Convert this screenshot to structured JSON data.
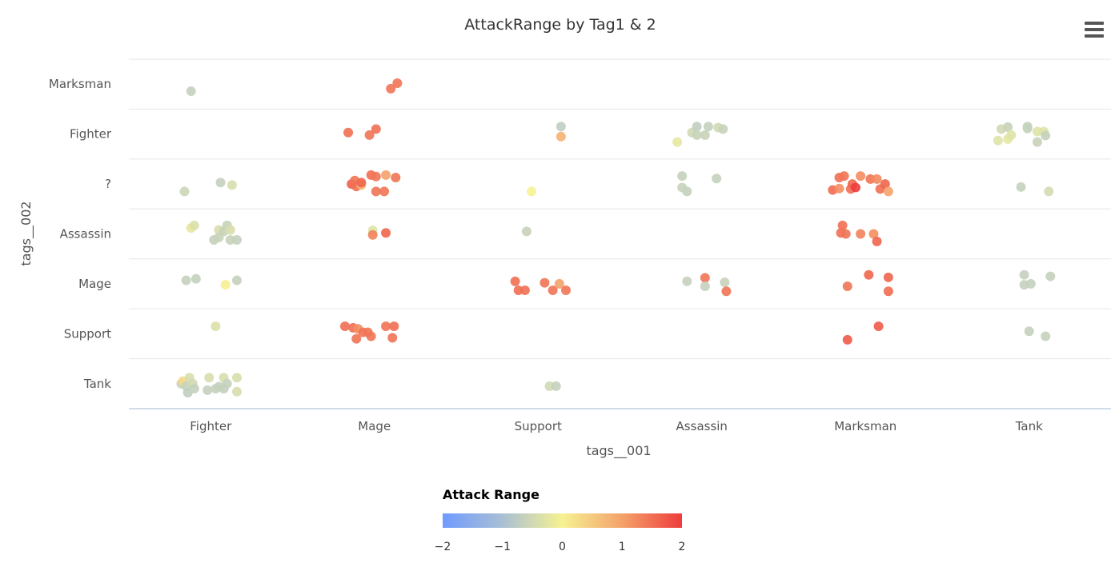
{
  "chart_data": {
    "type": "scatter",
    "title": "AttackRange by Tag1 & 2",
    "xlabel": "tags__001",
    "ylabel": "tags__002",
    "x_categories": [
      "Fighter",
      "Mage",
      "Support",
      "Assassin",
      "Marksman",
      "Tank"
    ],
    "y_categories": [
      "Marksman",
      "Fighter",
      "?",
      "Assassin",
      "Mage",
      "Support",
      "Tank"
    ],
    "color_axis": {
      "title": "Attack Range",
      "min": -2,
      "max": 2,
      "ticks": [
        "−2",
        "−1",
        "0",
        "1",
        "2"
      ],
      "stops": [
        "#6f9bff",
        "#a9bfd3",
        "#f6f293",
        "#f4a26a",
        "#ee3c3c"
      ]
    },
    "points": [
      {
        "x": "Fighter",
        "y": "Marksman",
        "dx": -0.12,
        "dy": -0.14,
        "v": -0.65
      },
      {
        "x": "Mage",
        "y": "Marksman",
        "dx": 0.1,
        "dy": -0.09,
        "v": 1.45
      },
      {
        "x": "Mage",
        "y": "Marksman",
        "dx": 0.14,
        "dy": 0.02,
        "v": 1.45
      },
      {
        "x": "Mage",
        "y": "Fighter",
        "dx": -0.16,
        "dy": 0.03,
        "v": 1.5
      },
      {
        "x": "Mage",
        "y": "Fighter",
        "dx": -0.03,
        "dy": -0.02,
        "v": 1.45
      },
      {
        "x": "Mage",
        "y": "Fighter",
        "dx": 0.01,
        "dy": 0.1,
        "v": 1.5
      },
      {
        "x": "Support",
        "y": "Fighter",
        "dx": 0.14,
        "dy": 0.15,
        "v": -0.7
      },
      {
        "x": "Support",
        "y": "Fighter",
        "dx": 0.14,
        "dy": -0.05,
        "v": 0.8
      },
      {
        "x": "Assassin",
        "y": "Fighter",
        "dx": -0.15,
        "dy": -0.16,
        "v": -0.2
      },
      {
        "x": "Assassin",
        "y": "Fighter",
        "dx": -0.06,
        "dy": 0.03,
        "v": -0.5
      },
      {
        "x": "Assassin",
        "y": "Fighter",
        "dx": -0.03,
        "dy": 0.15,
        "v": -0.7
      },
      {
        "x": "Assassin",
        "y": "Fighter",
        "dx": -0.03,
        "dy": -0.02,
        "v": -0.6
      },
      {
        "x": "Assassin",
        "y": "Fighter",
        "dx": 0.02,
        "dy": -0.02,
        "v": -0.6
      },
      {
        "x": "Assassin",
        "y": "Fighter",
        "dx": 0.04,
        "dy": 0.15,
        "v": -0.65
      },
      {
        "x": "Assassin",
        "y": "Fighter",
        "dx": 0.1,
        "dy": 0.13,
        "v": -0.5
      },
      {
        "x": "Assassin",
        "y": "Fighter",
        "dx": 0.13,
        "dy": 0.1,
        "v": -0.6
      },
      {
        "x": "Tank",
        "y": "Fighter",
        "dx": -0.19,
        "dy": -0.13,
        "v": -0.3
      },
      {
        "x": "Tank",
        "y": "Fighter",
        "dx": -0.17,
        "dy": 0.1,
        "v": -0.5
      },
      {
        "x": "Tank",
        "y": "Fighter",
        "dx": -0.13,
        "dy": 0.14,
        "v": -0.6
      },
      {
        "x": "Tank",
        "y": "Fighter",
        "dx": -0.13,
        "dy": -0.1,
        "v": -0.25
      },
      {
        "x": "Tank",
        "y": "Fighter",
        "dx": -0.11,
        "dy": -0.02,
        "v": -0.3
      },
      {
        "x": "Tank",
        "y": "Fighter",
        "dx": -0.01,
        "dy": 0.11,
        "v": -0.6
      },
      {
        "x": "Tank",
        "y": "Fighter",
        "dx": -0.01,
        "dy": 0.15,
        "v": -0.65
      },
      {
        "x": "Tank",
        "y": "Fighter",
        "dx": 0.05,
        "dy": 0.05,
        "v": -0.3
      },
      {
        "x": "Tank",
        "y": "Fighter",
        "dx": 0.05,
        "dy": -0.16,
        "v": -0.6
      },
      {
        "x": "Tank",
        "y": "Fighter",
        "dx": 0.09,
        "dy": 0.05,
        "v": -0.3
      },
      {
        "x": "Tank",
        "y": "Fighter",
        "dx": 0.1,
        "dy": -0.03,
        "v": -0.65
      },
      {
        "x": "Fighter",
        "y": "?",
        "dx": -0.16,
        "dy": -0.15,
        "v": -0.55
      },
      {
        "x": "Fighter",
        "y": "?",
        "dx": 0.06,
        "dy": 0.03,
        "v": -0.65
      },
      {
        "x": "Fighter",
        "y": "?",
        "dx": 0.13,
        "dy": -0.02,
        "v": -0.4
      },
      {
        "x": "Mage",
        "y": "?",
        "dx": -0.14,
        "dy": 0.0,
        "v": 1.65
      },
      {
        "x": "Mage",
        "y": "?",
        "dx": -0.12,
        "dy": 0.07,
        "v": 1.45
      },
      {
        "x": "Mage",
        "y": "?",
        "dx": -0.11,
        "dy": -0.05,
        "v": 1.5
      },
      {
        "x": "Mage",
        "y": "?",
        "dx": -0.08,
        "dy": -0.02,
        "v": 0.8
      },
      {
        "x": "Mage",
        "y": "?",
        "dx": -0.08,
        "dy": 0.03,
        "v": 1.6
      },
      {
        "x": "Mage",
        "y": "?",
        "dx": -0.02,
        "dy": 0.18,
        "v": 1.5
      },
      {
        "x": "Mage",
        "y": "?",
        "dx": 0.01,
        "dy": 0.15,
        "v": 1.45
      },
      {
        "x": "Mage",
        "y": "?",
        "dx": 0.01,
        "dy": -0.15,
        "v": 1.45
      },
      {
        "x": "Mage",
        "y": "?",
        "dx": 0.06,
        "dy": -0.15,
        "v": 1.45
      },
      {
        "x": "Mage",
        "y": "?",
        "dx": 0.07,
        "dy": 0.18,
        "v": 1.0
      },
      {
        "x": "Mage",
        "y": "?",
        "dx": 0.13,
        "dy": 0.13,
        "v": 1.45
      },
      {
        "x": "Support",
        "y": "?",
        "dx": -0.04,
        "dy": -0.15,
        "v": 0.0
      },
      {
        "x": "Assassin",
        "y": "?",
        "dx": -0.12,
        "dy": 0.16,
        "v": -0.65
      },
      {
        "x": "Assassin",
        "y": "?",
        "dx": -0.12,
        "dy": -0.07,
        "v": -0.6
      },
      {
        "x": "Assassin",
        "y": "?",
        "dx": -0.09,
        "dy": -0.15,
        "v": -0.65
      },
      {
        "x": "Assassin",
        "y": "?",
        "dx": 0.09,
        "dy": 0.11,
        "v": -0.65
      },
      {
        "x": "Marksman",
        "y": "?",
        "dx": -0.2,
        "dy": -0.12,
        "v": 1.55
      },
      {
        "x": "Marksman",
        "y": "?",
        "dx": -0.16,
        "dy": -0.09,
        "v": 1.2
      },
      {
        "x": "Marksman",
        "y": "?",
        "dx": -0.16,
        "dy": 0.13,
        "v": 1.5
      },
      {
        "x": "Marksman",
        "y": "?",
        "dx": -0.13,
        "dy": 0.16,
        "v": 1.45
      },
      {
        "x": "Marksman",
        "y": "?",
        "dx": -0.09,
        "dy": -0.1,
        "v": 1.5
      },
      {
        "x": "Marksman",
        "y": "?",
        "dx": -0.08,
        "dy": 0.0,
        "v": 1.6
      },
      {
        "x": "Marksman",
        "y": "?",
        "dx": -0.06,
        "dy": -0.07,
        "v": 2.0
      },
      {
        "x": "Marksman",
        "y": "?",
        "dx": -0.03,
        "dy": 0.16,
        "v": 1.2
      },
      {
        "x": "Marksman",
        "y": "?",
        "dx": 0.03,
        "dy": 0.1,
        "v": 1.45
      },
      {
        "x": "Marksman",
        "y": "?",
        "dx": 0.07,
        "dy": 0.1,
        "v": 1.25
      },
      {
        "x": "Marksman",
        "y": "?",
        "dx": 0.09,
        "dy": -0.1,
        "v": 1.5
      },
      {
        "x": "Marksman",
        "y": "?",
        "dx": 0.12,
        "dy": 0.0,
        "v": 1.6
      },
      {
        "x": "Marksman",
        "y": "?",
        "dx": 0.14,
        "dy": -0.15,
        "v": 1.0
      },
      {
        "x": "Tank",
        "y": "?",
        "dx": -0.05,
        "dy": -0.06,
        "v": -0.65
      },
      {
        "x": "Tank",
        "y": "?",
        "dx": 0.12,
        "dy": -0.15,
        "v": -0.45
      },
      {
        "x": "Fighter",
        "y": "Assassin",
        "dx": -0.12,
        "dy": 0.12,
        "v": -0.2
      },
      {
        "x": "Fighter",
        "y": "Assassin",
        "dx": -0.1,
        "dy": 0.17,
        "v": -0.35
      },
      {
        "x": "Fighter",
        "y": "Assassin",
        "dx": 0.02,
        "dy": -0.12,
        "v": -0.65
      },
      {
        "x": "Fighter",
        "y": "Assassin",
        "dx": 0.05,
        "dy": 0.08,
        "v": -0.4
      },
      {
        "x": "Fighter",
        "y": "Assassin",
        "dx": 0.05,
        "dy": -0.07,
        "v": -0.6
      },
      {
        "x": "Fighter",
        "y": "Assassin",
        "dx": 0.08,
        "dy": 0.05,
        "v": -0.6
      },
      {
        "x": "Fighter",
        "y": "Assassin",
        "dx": 0.1,
        "dy": 0.17,
        "v": -0.6
      },
      {
        "x": "Fighter",
        "y": "Assassin",
        "dx": 0.12,
        "dy": 0.08,
        "v": -0.4
      },
      {
        "x": "Fighter",
        "y": "Assassin",
        "dx": 0.12,
        "dy": -0.12,
        "v": -0.6
      },
      {
        "x": "Fighter",
        "y": "Assassin",
        "dx": 0.16,
        "dy": -0.12,
        "v": -0.65
      },
      {
        "x": "Mage",
        "y": "Assassin",
        "dx": -0.01,
        "dy": 0.07,
        "v": -0.3
      },
      {
        "x": "Mage",
        "y": "Assassin",
        "dx": -0.01,
        "dy": -0.02,
        "v": 1.3
      },
      {
        "x": "Mage",
        "y": "Assassin",
        "dx": 0.07,
        "dy": 0.02,
        "v": 1.6
      },
      {
        "x": "Support",
        "y": "Assassin",
        "dx": -0.07,
        "dy": 0.05,
        "v": -0.6
      },
      {
        "x": "Marksman",
        "y": "Assassin",
        "dx": -0.14,
        "dy": 0.17,
        "v": 1.5
      },
      {
        "x": "Marksman",
        "y": "Assassin",
        "dx": -0.15,
        "dy": 0.02,
        "v": 1.5
      },
      {
        "x": "Marksman",
        "y": "Assassin",
        "dx": -0.12,
        "dy": 0.0,
        "v": 1.45
      },
      {
        "x": "Marksman",
        "y": "Assassin",
        "dx": -0.03,
        "dy": 0.0,
        "v": 1.3
      },
      {
        "x": "Marksman",
        "y": "Assassin",
        "dx": 0.05,
        "dy": 0.0,
        "v": 1.2
      },
      {
        "x": "Marksman",
        "y": "Assassin",
        "dx": 0.07,
        "dy": -0.15,
        "v": 1.6
      },
      {
        "x": "Fighter",
        "y": "Mage",
        "dx": -0.15,
        "dy": 0.07,
        "v": -0.65
      },
      {
        "x": "Fighter",
        "y": "Mage",
        "dx": -0.09,
        "dy": 0.1,
        "v": -0.65
      },
      {
        "x": "Fighter",
        "y": "Mage",
        "dx": 0.09,
        "dy": -0.02,
        "v": 0.05
      },
      {
        "x": "Fighter",
        "y": "Mage",
        "dx": 0.16,
        "dy": 0.07,
        "v": -0.65
      },
      {
        "x": "Support",
        "y": "Mage",
        "dx": -0.14,
        "dy": 0.05,
        "v": 1.5
      },
      {
        "x": "Support",
        "y": "Mage",
        "dx": -0.12,
        "dy": -0.13,
        "v": 1.5
      },
      {
        "x": "Support",
        "y": "Mage",
        "dx": -0.08,
        "dy": -0.13,
        "v": 1.5
      },
      {
        "x": "Support",
        "y": "Mage",
        "dx": 0.04,
        "dy": 0.02,
        "v": 1.45
      },
      {
        "x": "Support",
        "y": "Mage",
        "dx": 0.09,
        "dy": -0.13,
        "v": 1.45
      },
      {
        "x": "Support",
        "y": "Mage",
        "dx": 0.13,
        "dy": 0.0,
        "v": 1.0
      },
      {
        "x": "Support",
        "y": "Mage",
        "dx": 0.17,
        "dy": -0.13,
        "v": 1.45
      },
      {
        "x": "Assassin",
        "y": "Mage",
        "dx": -0.09,
        "dy": 0.05,
        "v": -0.65
      },
      {
        "x": "Assassin",
        "y": "Mage",
        "dx": 0.02,
        "dy": 0.12,
        "v": 1.45
      },
      {
        "x": "Assassin",
        "y": "Mage",
        "dx": 0.02,
        "dy": -0.05,
        "v": -0.65
      },
      {
        "x": "Assassin",
        "y": "Mage",
        "dx": 0.14,
        "dy": 0.03,
        "v": -0.6
      },
      {
        "x": "Assassin",
        "y": "Mage",
        "dx": 0.15,
        "dy": -0.15,
        "v": 1.45
      },
      {
        "x": "Marksman",
        "y": "Mage",
        "dx": -0.11,
        "dy": -0.05,
        "v": 1.45
      },
      {
        "x": "Marksman",
        "y": "Mage",
        "dx": 0.02,
        "dy": 0.18,
        "v": 1.6
      },
      {
        "x": "Marksman",
        "y": "Mage",
        "dx": 0.14,
        "dy": 0.13,
        "v": 1.6
      },
      {
        "x": "Marksman",
        "y": "Mage",
        "dx": 0.14,
        "dy": -0.15,
        "v": 1.55
      },
      {
        "x": "Tank",
        "y": "Mage",
        "dx": -0.03,
        "dy": 0.18,
        "v": -0.65
      },
      {
        "x": "Tank",
        "y": "Mage",
        "dx": -0.03,
        "dy": -0.02,
        "v": -0.65
      },
      {
        "x": "Tank",
        "y": "Mage",
        "dx": 0.01,
        "dy": 0.0,
        "v": -0.65
      },
      {
        "x": "Tank",
        "y": "Mage",
        "dx": 0.13,
        "dy": 0.15,
        "v": -0.65
      },
      {
        "x": "Fighter",
        "y": "Support",
        "dx": 0.03,
        "dy": 0.15,
        "v": -0.35
      },
      {
        "x": "Mage",
        "y": "Support",
        "dx": -0.18,
        "dy": 0.15,
        "v": 1.5
      },
      {
        "x": "Mage",
        "y": "Support",
        "dx": -0.13,
        "dy": 0.12,
        "v": 1.5
      },
      {
        "x": "Mage",
        "y": "Support",
        "dx": -0.11,
        "dy": -0.1,
        "v": 1.45
      },
      {
        "x": "Mage",
        "y": "Support",
        "dx": -0.1,
        "dy": 0.1,
        "v": 1.2
      },
      {
        "x": "Mage",
        "y": "Support",
        "dx": -0.07,
        "dy": 0.03,
        "v": 1.45
      },
      {
        "x": "Mage",
        "y": "Support",
        "dx": -0.04,
        "dy": 0.03,
        "v": 1.45
      },
      {
        "x": "Mage",
        "y": "Support",
        "dx": -0.02,
        "dy": -0.05,
        "v": 1.45
      },
      {
        "x": "Mage",
        "y": "Support",
        "dx": 0.07,
        "dy": 0.15,
        "v": 1.45
      },
      {
        "x": "Mage",
        "y": "Support",
        "dx": 0.11,
        "dy": -0.08,
        "v": 1.45
      },
      {
        "x": "Mage",
        "y": "Support",
        "dx": 0.12,
        "dy": 0.15,
        "v": 1.5
      },
      {
        "x": "Marksman",
        "y": "Support",
        "dx": -0.11,
        "dy": -0.12,
        "v": 1.7
      },
      {
        "x": "Marksman",
        "y": "Support",
        "dx": 0.08,
        "dy": 0.15,
        "v": 1.7
      },
      {
        "x": "Tank",
        "y": "Support",
        "dx": 0.0,
        "dy": 0.05,
        "v": -0.65
      },
      {
        "x": "Tank",
        "y": "Support",
        "dx": 0.1,
        "dy": -0.05,
        "v": -0.65
      },
      {
        "x": "Fighter",
        "y": "Tank",
        "dx": -0.18,
        "dy": 0.0,
        "v": -0.65
      },
      {
        "x": "Fighter",
        "y": "Tank",
        "dx": -0.17,
        "dy": 0.05,
        "v": 0.3
      },
      {
        "x": "Fighter",
        "y": "Tank",
        "dx": -0.15,
        "dy": -0.05,
        "v": -0.65
      },
      {
        "x": "Fighter",
        "y": "Tank",
        "dx": -0.13,
        "dy": 0.12,
        "v": -0.4
      },
      {
        "x": "Fighter",
        "y": "Tank",
        "dx": -0.14,
        "dy": -0.18,
        "v": -0.7
      },
      {
        "x": "Fighter",
        "y": "Tank",
        "dx": -0.11,
        "dy": 0.0,
        "v": -0.5
      },
      {
        "x": "Fighter",
        "y": "Tank",
        "dx": -0.1,
        "dy": -0.1,
        "v": -0.65
      },
      {
        "x": "Fighter",
        "y": "Tank",
        "dx": -0.01,
        "dy": 0.12,
        "v": -0.4
      },
      {
        "x": "Fighter",
        "y": "Tank",
        "dx": -0.02,
        "dy": -0.13,
        "v": -0.65
      },
      {
        "x": "Fighter",
        "y": "Tank",
        "dx": 0.03,
        "dy": -0.1,
        "v": -0.65
      },
      {
        "x": "Fighter",
        "y": "Tank",
        "dx": 0.05,
        "dy": -0.06,
        "v": -0.65
      },
      {
        "x": "Fighter",
        "y": "Tank",
        "dx": 0.08,
        "dy": 0.12,
        "v": -0.4
      },
      {
        "x": "Fighter",
        "y": "Tank",
        "dx": 0.08,
        "dy": -0.1,
        "v": -0.65
      },
      {
        "x": "Fighter",
        "y": "Tank",
        "dx": 0.1,
        "dy": 0.0,
        "v": -0.65
      },
      {
        "x": "Fighter",
        "y": "Tank",
        "dx": 0.16,
        "dy": 0.12,
        "v": -0.4
      },
      {
        "x": "Fighter",
        "y": "Tank",
        "dx": 0.16,
        "dy": -0.16,
        "v": -0.4
      },
      {
        "x": "Support",
        "y": "Tank",
        "dx": 0.07,
        "dy": -0.05,
        "v": -0.5
      },
      {
        "x": "Support",
        "y": "Tank",
        "dx": 0.11,
        "dy": -0.05,
        "v": -0.65
      }
    ]
  },
  "ui": {
    "menu_icon": "hamburger-menu-icon"
  }
}
